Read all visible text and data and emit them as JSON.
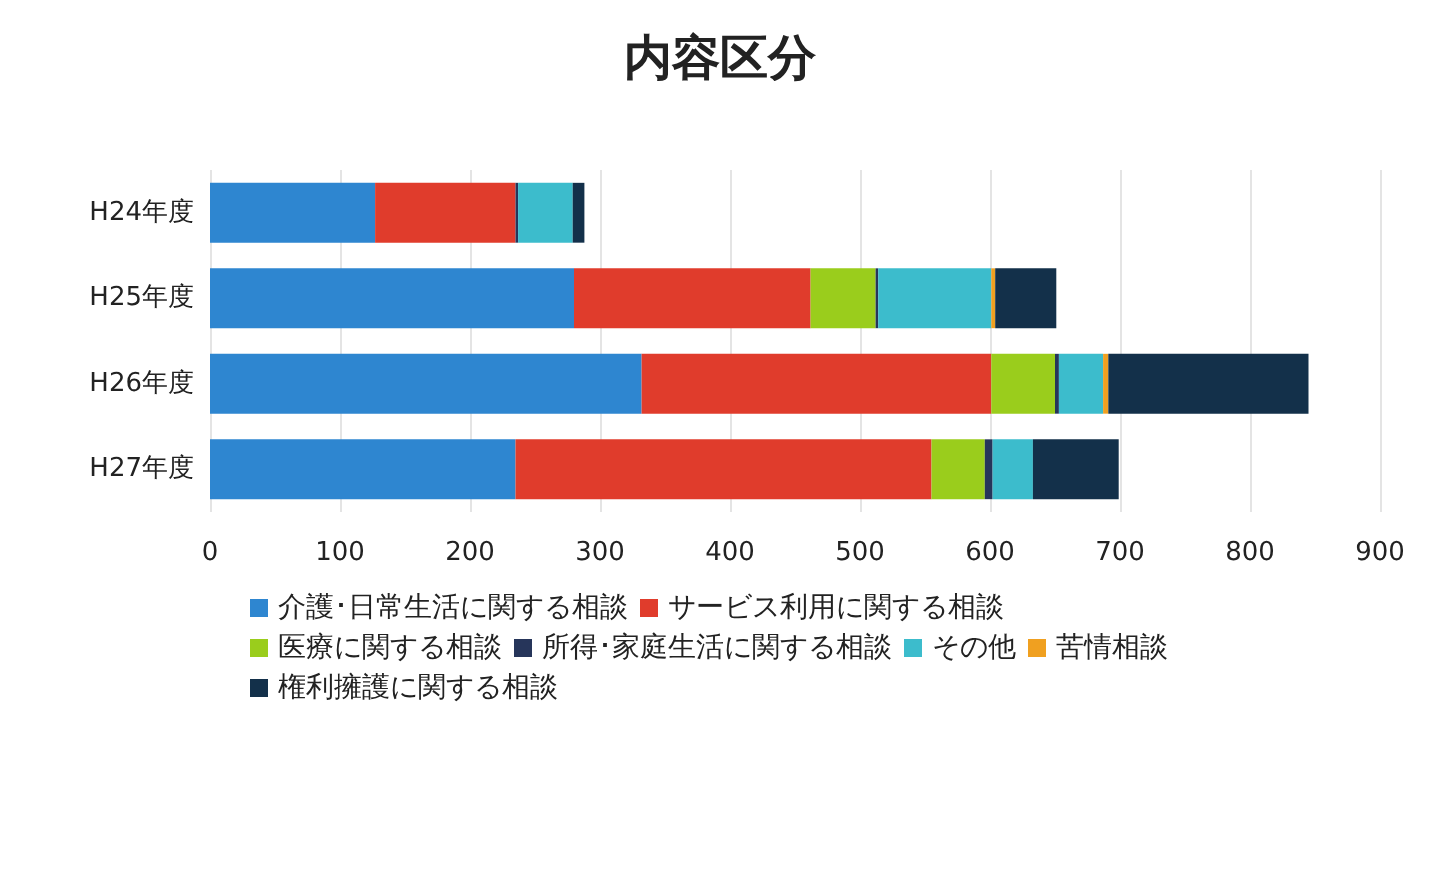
{
  "chart_data": {
    "type": "bar",
    "title": "内容区分",
    "orientation": "horizontal",
    "stacked": true,
    "categories": [
      "H24年度",
      "H25年度",
      "H26年度",
      "H27年度"
    ],
    "series": [
      {
        "name": "介護･日常生活に関する相談",
        "color": "#2e86d0",
        "values": [
          127,
          280,
          332,
          235
        ]
      },
      {
        "name": "サービス利用に関する相談",
        "color": "#e03c2c",
        "values": [
          108,
          182,
          269,
          320
        ]
      },
      {
        "name": "医療に関する相談",
        "color": "#9acd1c",
        "values": [
          0,
          50,
          49,
          41
        ]
      },
      {
        "name": "所得･家庭生活に関する相談",
        "color": "#26355a",
        "values": [
          2,
          2,
          3,
          6
        ]
      },
      {
        "name": "その他",
        "color": "#3cbccc",
        "values": [
          42,
          87,
          34,
          31
        ]
      },
      {
        "name": "苦情相談",
        "color": "#f0a020",
        "values": [
          0,
          3,
          4,
          0
        ]
      },
      {
        "name": "権利擁護に関する相談",
        "color": "#13304a",
        "values": [
          9,
          47,
          154,
          66
        ]
      }
    ],
    "xlim": [
      0,
      900
    ],
    "xticks": [
      0,
      100,
      200,
      300,
      400,
      500,
      600,
      700,
      800,
      900
    ],
    "grid": "x",
    "legend": "bottom"
  }
}
